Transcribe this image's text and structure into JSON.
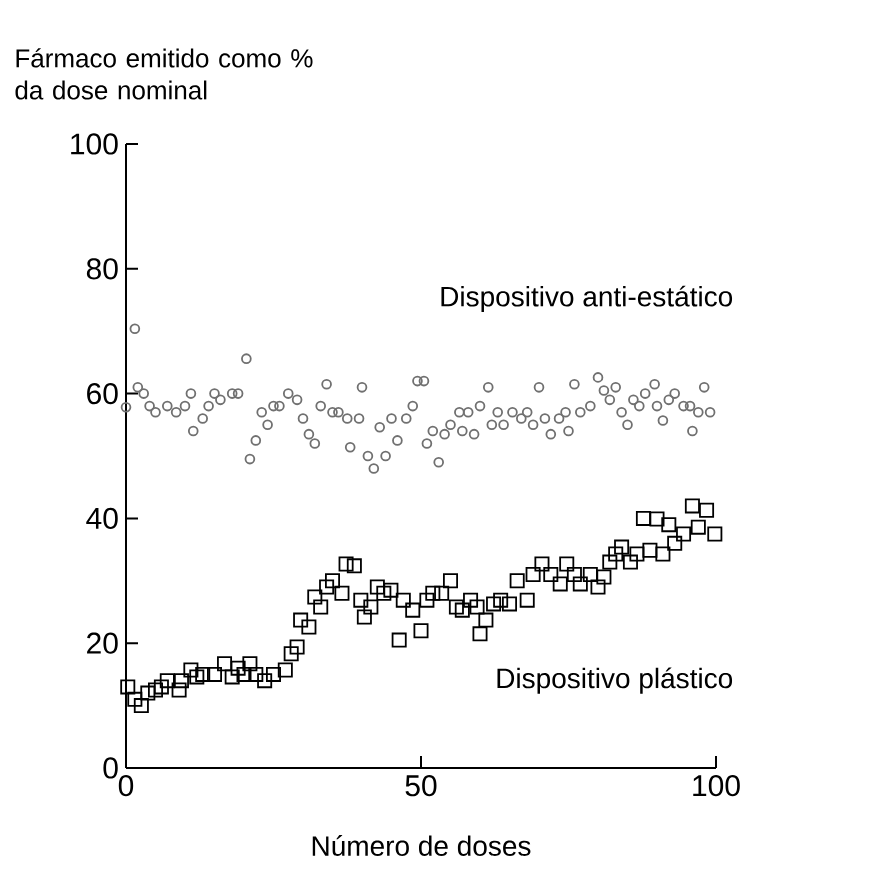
{
  "chart_data": {
    "type": "scatter",
    "ylabel": "Fármaco emitido como % da dose nominal",
    "xlabel": "Número de doses",
    "xlim": [
      0,
      100
    ],
    "ylim": [
      0,
      100
    ],
    "xticks": [
      0,
      50,
      100
    ],
    "yticks": [
      0,
      20,
      40,
      60,
      80,
      100
    ],
    "grid": false,
    "legend": false,
    "series": [
      {
        "name": "Dispositivo anti-estático",
        "color": "#707070",
        "marker": "circle",
        "x": [
          0,
          1.5,
          2,
          3,
          4,
          5,
          7,
          8.5,
          10,
          11,
          11.4,
          13,
          14,
          15,
          16,
          18,
          19,
          20.4,
          21,
          22,
          23,
          24,
          25,
          26,
          27.5,
          29,
          30,
          31,
          32,
          33,
          34,
          35,
          36,
          37.5,
          38,
          39.5,
          40,
          41,
          42,
          43,
          44,
          45,
          46,
          47.5,
          48.6,
          49.4,
          50.5,
          51,
          52,
          53,
          54,
          55,
          56.5,
          57,
          58,
          59,
          60,
          61.4,
          62,
          63,
          64,
          65.5,
          67,
          68,
          69,
          70,
          71,
          72,
          73.4,
          74.5,
          75,
          76,
          77,
          78.7,
          80,
          81,
          82,
          83,
          84,
          85,
          86,
          87,
          88,
          89.6,
          90,
          91,
          92,
          93,
          94.5,
          95.6,
          96,
          97,
          98,
          99
        ],
        "values": [
          57.8,
          70.4,
          61,
          60,
          58,
          57,
          58,
          57,
          58,
          60,
          54,
          56,
          58,
          60,
          59,
          60,
          60,
          65.6,
          49.5,
          52.5,
          57,
          55,
          58,
          58,
          60,
          59,
          56,
          53.5,
          52,
          58,
          61.5,
          57,
          57,
          56,
          51.4,
          56,
          61,
          50,
          48,
          54.6,
          50,
          56,
          52.5,
          56,
          58,
          62,
          62,
          52,
          54,
          49,
          53.5,
          55,
          57,
          54,
          57,
          53.5,
          58,
          61,
          55,
          57,
          55,
          57,
          56,
          57,
          55,
          61,
          56,
          53.5,
          56,
          57,
          54,
          61.5,
          57,
          58,
          62.6,
          60.5,
          59,
          61,
          57,
          55,
          59,
          58,
          60,
          61.5,
          58,
          55.7,
          59,
          60,
          58,
          58,
          54,
          57,
          61,
          57
        ]
      },
      {
        "name": "Dispositivo plástico",
        "color": "#000000",
        "marker": "square",
        "x": [
          0.3,
          1.5,
          2.6,
          3.7,
          5,
          6,
          7,
          9,
          9.4,
          11,
          12,
          13,
          15,
          16.7,
          18,
          19,
          20,
          21,
          22,
          23.5,
          25,
          27,
          28,
          29,
          29.6,
          31,
          32,
          33,
          34,
          35,
          36.6,
          37.3,
          38.7,
          39.8,
          40.4,
          41.5,
          42.6,
          43.7,
          44.9,
          46.3,
          47,
          48.6,
          50,
          51,
          52,
          53.5,
          55,
          56,
          57,
          58.4,
          59.5,
          60,
          61,
          62.3,
          63.5,
          65,
          66.3,
          68,
          69,
          70.5,
          72,
          73.6,
          74.7,
          76,
          77,
          78.7,
          80,
          81,
          82,
          83,
          84,
          85.5,
          86.6,
          87.7,
          88.8,
          90,
          91,
          92,
          93,
          94.5,
          96,
          97,
          98.4,
          99.8
        ],
        "values": [
          13,
          11,
          10,
          12,
          12.5,
          13,
          14,
          12.5,
          14,
          15.7,
          14.6,
          15,
          15,
          16.7,
          14.6,
          16,
          15,
          16.7,
          15,
          14,
          15,
          15.7,
          18.3,
          19.4,
          23.7,
          22.6,
          27.4,
          25.8,
          29,
          30,
          28,
          32.7,
          32.4,
          26.9,
          24.2,
          25.8,
          29,
          28,
          28.5,
          20.5,
          26.9,
          25.3,
          22,
          26.9,
          28,
          28,
          30,
          25.8,
          25.3,
          26.9,
          25.8,
          21.5,
          23.7,
          26.3,
          26.9,
          26.3,
          30,
          26.9,
          31,
          32.7,
          31,
          29.5,
          32.7,
          31,
          29.5,
          31,
          29,
          30.6,
          33,
          34.3,
          35.4,
          33,
          34.3,
          40,
          34.9,
          39.9,
          34.3,
          39,
          36,
          37.5,
          42,
          38.6,
          41.3,
          37.5
        ]
      }
    ]
  }
}
